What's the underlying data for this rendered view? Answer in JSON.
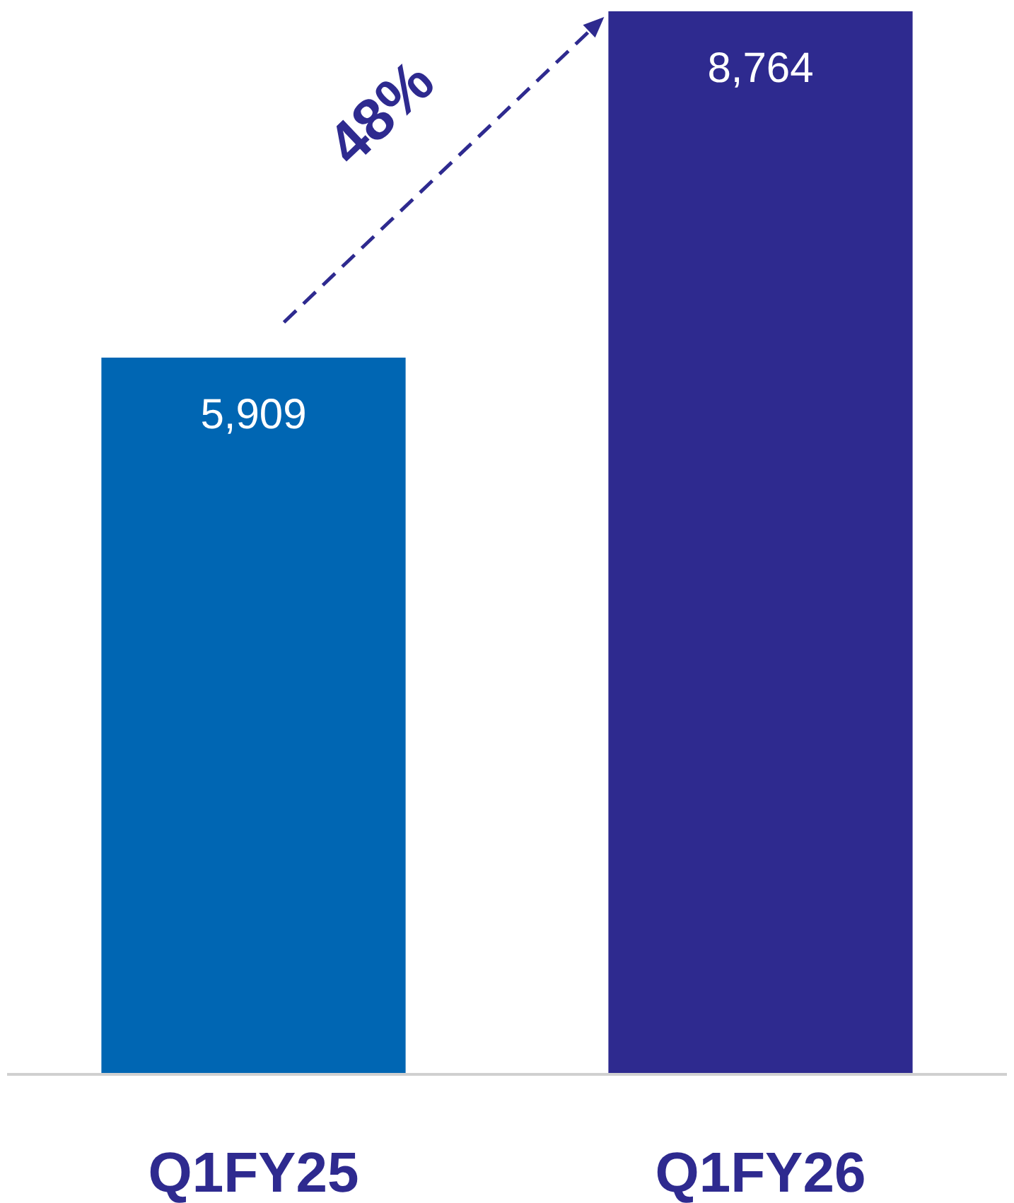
{
  "chart_data": {
    "type": "bar",
    "categories": [
      "Q1FY25",
      "Q1FY26"
    ],
    "values": [
      5909,
      8764
    ],
    "colors": [
      "#0066b3",
      "#2e2a8f"
    ],
    "value_labels": [
      "5,909",
      "8,764"
    ],
    "annotations": [
      "48%"
    ]
  }
}
